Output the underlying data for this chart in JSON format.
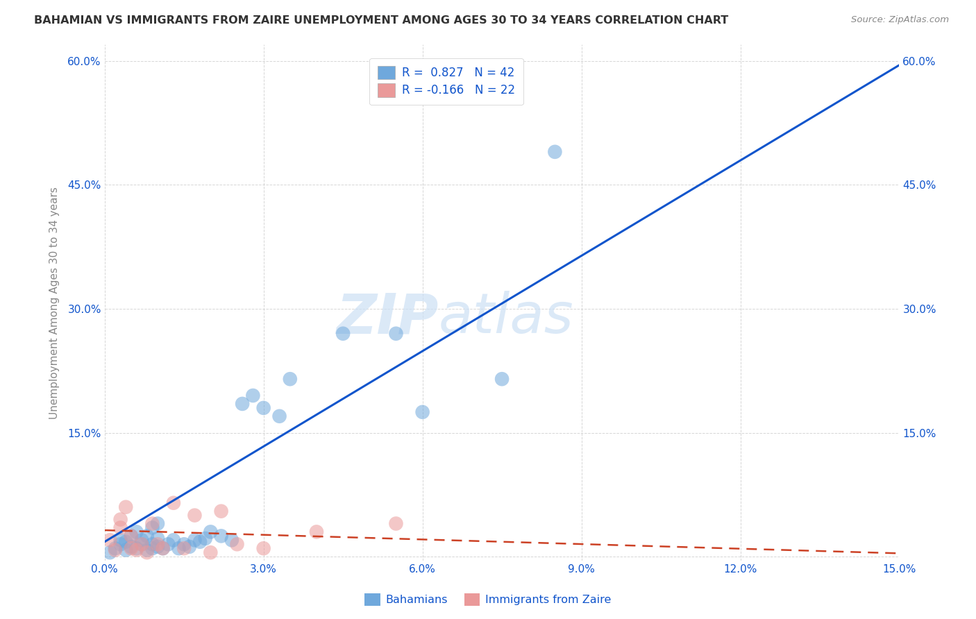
{
  "title": "BAHAMIAN VS IMMIGRANTS FROM ZAIRE UNEMPLOYMENT AMONG AGES 30 TO 34 YEARS CORRELATION CHART",
  "source": "Source: ZipAtlas.com",
  "ylabel": "Unemployment Among Ages 30 to 34 years",
  "xlim": [
    0,
    0.15
  ],
  "ylim": [
    -0.005,
    0.62
  ],
  "yticks": [
    0.0,
    0.15,
    0.3,
    0.45,
    0.6
  ],
  "xticks": [
    0.0,
    0.03,
    0.06,
    0.09,
    0.12,
    0.15
  ],
  "xtick_labels": [
    "0.0%",
    "3.0%",
    "6.0%",
    "9.0%",
    "12.0%",
    "15.0%"
  ],
  "ytick_labels": [
    "",
    "15.0%",
    "30.0%",
    "45.0%",
    "60.0%"
  ],
  "right_ytick_labels": [
    "",
    "15.0%",
    "30.0%",
    "45.0%",
    "60.0%"
  ],
  "bahamian_color": "#6fa8dc",
  "zaire_color": "#ea9999",
  "blue_line_color": "#1155cc",
  "pink_line_color": "#cc4125",
  "R_bahamian": 0.827,
  "N_bahamian": 42,
  "R_zaire": -0.166,
  "N_zaire": 22,
  "watermark_zip": "ZIP",
  "watermark_atlas": "atlas",
  "legend_label_1": "Bahamians",
  "legend_label_2": "Immigrants from Zaire",
  "blue_line_x": [
    0.0,
    0.15
  ],
  "blue_line_y": [
    0.018,
    0.595
  ],
  "pink_line_x": [
    0.0,
    0.15
  ],
  "pink_line_y": [
    0.032,
    0.004
  ],
  "bahamian_x": [
    0.001,
    0.002,
    0.003,
    0.003,
    0.004,
    0.004,
    0.005,
    0.005,
    0.006,
    0.006,
    0.007,
    0.007,
    0.008,
    0.008,
    0.009,
    0.009,
    0.009,
    0.01,
    0.01,
    0.01,
    0.011,
    0.012,
    0.013,
    0.014,
    0.015,
    0.016,
    0.017,
    0.018,
    0.019,
    0.02,
    0.022,
    0.024,
    0.026,
    0.028,
    0.03,
    0.033,
    0.035,
    0.045,
    0.055,
    0.06,
    0.075,
    0.085
  ],
  "bahamian_y": [
    0.005,
    0.01,
    0.015,
    0.02,
    0.008,
    0.018,
    0.012,
    0.025,
    0.01,
    0.03,
    0.015,
    0.02,
    0.008,
    0.025,
    0.01,
    0.015,
    0.035,
    0.012,
    0.022,
    0.04,
    0.01,
    0.015,
    0.02,
    0.01,
    0.015,
    0.012,
    0.02,
    0.018,
    0.022,
    0.03,
    0.025,
    0.02,
    0.185,
    0.195,
    0.18,
    0.17,
    0.215,
    0.27,
    0.27,
    0.175,
    0.215,
    0.49
  ],
  "zaire_x": [
    0.001,
    0.002,
    0.003,
    0.003,
    0.004,
    0.005,
    0.005,
    0.006,
    0.007,
    0.008,
    0.009,
    0.01,
    0.011,
    0.013,
    0.015,
    0.017,
    0.02,
    0.022,
    0.025,
    0.03,
    0.04,
    0.055
  ],
  "zaire_y": [
    0.02,
    0.008,
    0.035,
    0.045,
    0.06,
    0.01,
    0.025,
    0.008,
    0.015,
    0.005,
    0.04,
    0.015,
    0.01,
    0.065,
    0.01,
    0.05,
    0.005,
    0.055,
    0.015,
    0.01,
    0.03,
    0.04
  ]
}
